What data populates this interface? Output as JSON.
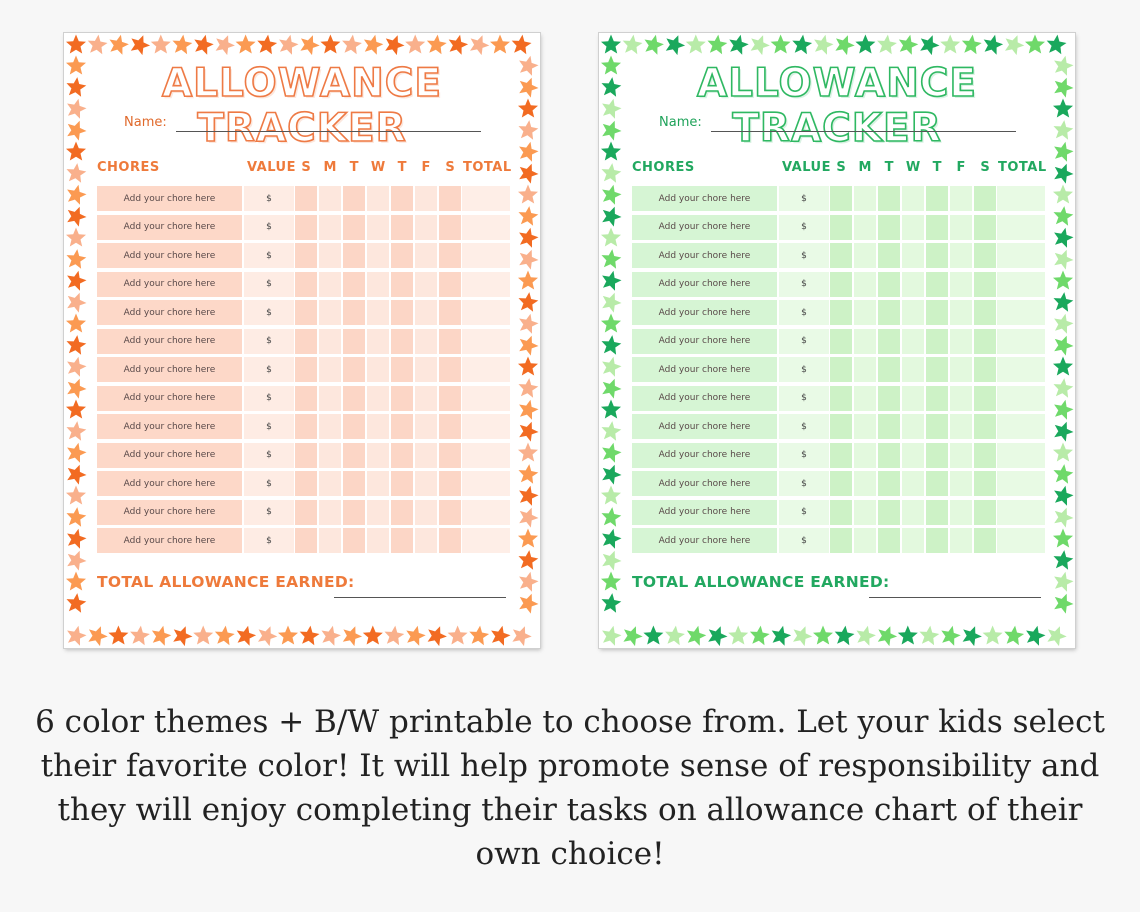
{
  "sheets": [
    {
      "theme": "orange",
      "title": "ALLOWANCE TRACKER",
      "name_label": "Name:",
      "headers": {
        "chores": "CHORES",
        "value": "VALUE",
        "days": [
          "S",
          "M",
          "T",
          "W",
          "T",
          "F",
          "S"
        ],
        "total": "TOTAL"
      },
      "row_text": "Add your chore here",
      "value_text": "$",
      "row_count": 13,
      "total_label": "TOTAL ALLOWANCE EARNED:",
      "colors": {
        "accent": "#ee7a3b",
        "star_a": "#f26b22",
        "star_b": "#f9b08c",
        "star_c": "#fb9a52"
      }
    },
    {
      "theme": "green",
      "title": "ALLOWANCE TRACKER",
      "name_label": "Name:",
      "headers": {
        "chores": "CHORES",
        "value": "VALUE",
        "days": [
          "S",
          "M",
          "T",
          "W",
          "T",
          "F",
          "S"
        ],
        "total": "TOTAL"
      },
      "row_text": "Add your chore here",
      "value_text": "$",
      "row_count": 13,
      "total_label": "TOTAL ALLOWANCE EARNED:",
      "colors": {
        "accent": "#22a860",
        "star_a": "#1aa85c",
        "star_b": "#b8eba8",
        "star_c": "#6fd96a"
      }
    }
  ],
  "caption": "6 color themes + B/W printable to choose from. Let your kids select their favorite color! It will help promote sense of responsibility and they will enjoy completing their tasks on allowance chart of their own choice!"
}
